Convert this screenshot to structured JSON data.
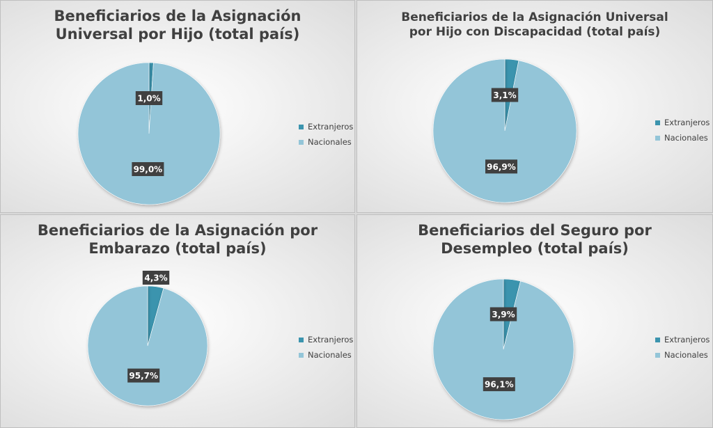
{
  "legend": {
    "items": [
      {
        "label": "Extranjeros",
        "color": "#3b94ae"
      },
      {
        "label": "Nacionales",
        "color": "#93c5d8"
      }
    ]
  },
  "chart_data": [
    {
      "type": "pie",
      "title_lines": [
        "Beneficiarios de la Asignación",
        "Universal por Hijo (total país)"
      ],
      "labels": [
        "Extranjeros",
        "Nacionales"
      ],
      "values": [
        1.0,
        99.0
      ],
      "value_labels": [
        "1,0%",
        "99,0%"
      ],
      "colors": [
        "#3b94ae",
        "#93c5d8"
      ],
      "legend_position": "right"
    },
    {
      "type": "pie",
      "title_lines": [
        "Beneficiarios de la Asignación Universal",
        "por Hijo con Discapacidad (total país)"
      ],
      "labels": [
        "Extranjeros",
        "Nacionales"
      ],
      "values": [
        3.1,
        96.9
      ],
      "value_labels": [
        "3,1%",
        "96,9%"
      ],
      "colors": [
        "#3b94ae",
        "#93c5d8"
      ],
      "legend_position": "right"
    },
    {
      "type": "pie",
      "title_lines": [
        "Beneficiarios de la Asignación por",
        "Embarazo (total país)"
      ],
      "labels": [
        "Extranjeros",
        "Nacionales"
      ],
      "values": [
        4.3,
        95.7
      ],
      "value_labels": [
        "4,3%",
        "95,7%"
      ],
      "colors": [
        "#3b94ae",
        "#93c5d8"
      ],
      "legend_position": "right"
    },
    {
      "type": "pie",
      "title_lines": [
        "Beneficiarios del Seguro por",
        "Desempleo (total país)"
      ],
      "labels": [
        "Extranjeros",
        "Nacionales"
      ],
      "values": [
        3.9,
        96.1
      ],
      "value_labels": [
        "3,9%",
        "96,1%"
      ],
      "colors": [
        "#3b94ae",
        "#93c5d8"
      ],
      "legend_position": "right"
    }
  ]
}
